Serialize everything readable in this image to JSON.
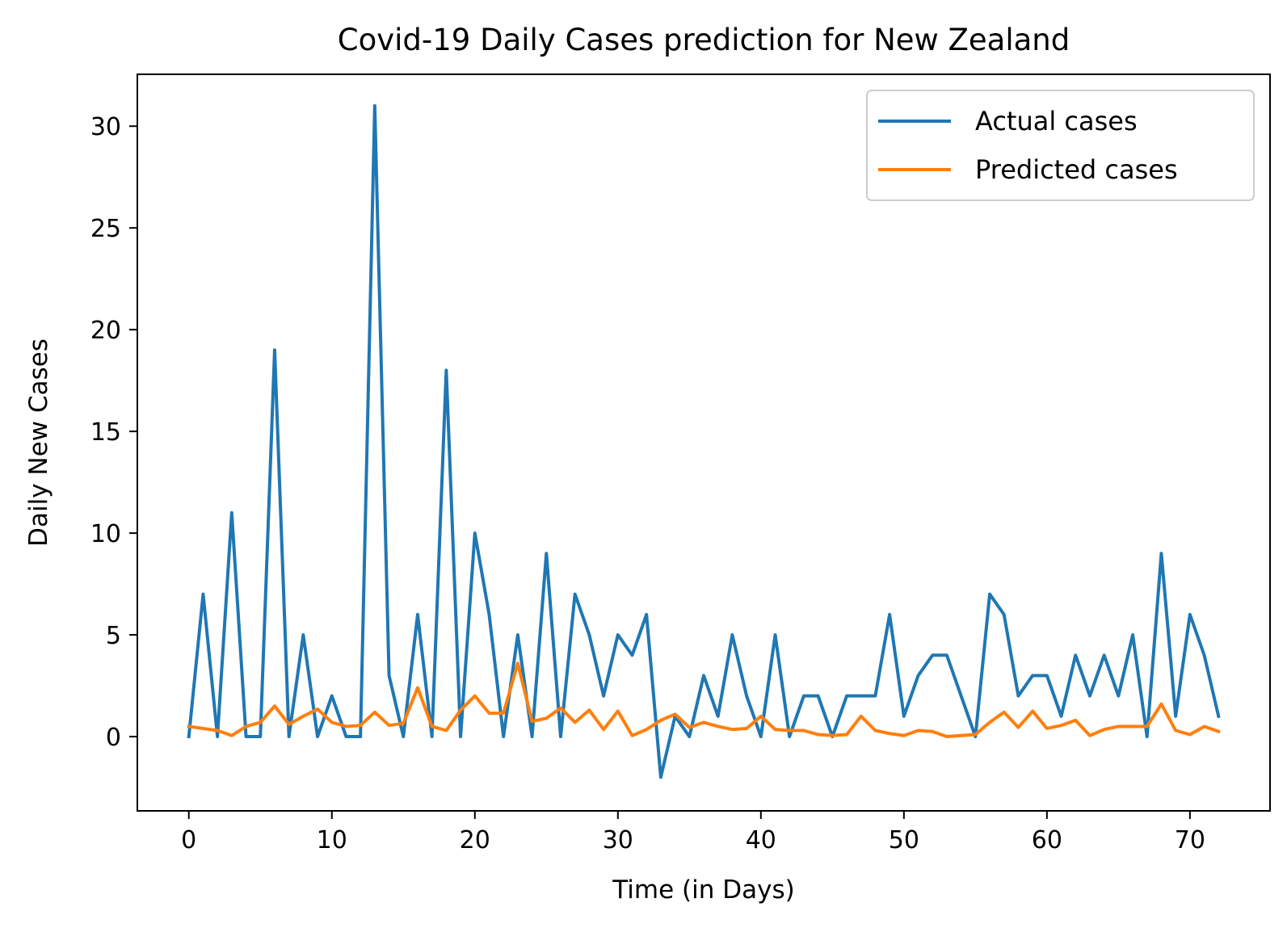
{
  "chart_data": {
    "type": "line",
    "title": "Covid-19 Daily Cases prediction for New Zealand",
    "xlabel": "Time (in Days)",
    "ylabel": "Daily New Cases",
    "xlim": [
      -3.6,
      75.6
    ],
    "ylim": [
      -3.65,
      32.55
    ],
    "x_ticks": [
      0,
      10,
      20,
      30,
      40,
      50,
      60,
      70
    ],
    "y_ticks": [
      0,
      5,
      10,
      15,
      20,
      25,
      30
    ],
    "x_tick_labels": [
      "0",
      "10",
      "20",
      "30",
      "40",
      "50",
      "60",
      "70"
    ],
    "y_tick_labels": [
      "0",
      "5",
      "10",
      "15",
      "20",
      "25",
      "30"
    ],
    "grid": false,
    "legend_position": "top-right",
    "x": [
      0,
      1,
      2,
      3,
      4,
      5,
      6,
      7,
      8,
      9,
      10,
      11,
      12,
      13,
      14,
      15,
      16,
      17,
      18,
      19,
      20,
      21,
      22,
      23,
      24,
      25,
      26,
      27,
      28,
      29,
      30,
      31,
      32,
      33,
      34,
      35,
      36,
      37,
      38,
      39,
      40,
      41,
      42,
      43,
      44,
      45,
      46,
      47,
      48,
      49,
      50,
      51,
      52,
      53,
      54,
      55,
      56,
      57,
      58,
      59,
      60,
      61,
      62,
      63,
      64,
      65,
      66,
      67,
      68,
      69,
      70,
      71,
      72
    ],
    "series": [
      {
        "name": "Actual cases",
        "color": "#1f77b4",
        "values": [
          0,
          7,
          0,
          11,
          0,
          0,
          19,
          0,
          5,
          0,
          2,
          0,
          0,
          31,
          3,
          0,
          6,
          0,
          18,
          0,
          10,
          6,
          0,
          5,
          0,
          9,
          0,
          7,
          5,
          2,
          5,
          4,
          6,
          -2,
          1,
          0,
          3,
          1,
          5,
          2,
          0,
          5,
          0,
          2,
          2,
          0,
          2,
          2,
          2,
          6,
          1,
          3,
          4,
          4,
          2,
          0,
          7,
          6,
          2,
          3,
          3,
          1,
          4,
          2,
          4,
          2,
          5,
          0,
          9,
          1,
          6,
          4,
          1
        ]
      },
      {
        "name": "Predicted cases",
        "color": "#ff7f0e",
        "values": [
          0.5,
          0.4,
          0.3,
          0.05,
          0.5,
          0.7,
          1.5,
          0.6,
          1.0,
          1.35,
          0.7,
          0.5,
          0.55,
          1.2,
          0.55,
          0.65,
          2.4,
          0.5,
          0.3,
          1.3,
          2.0,
          1.15,
          1.15,
          3.6,
          0.75,
          0.9,
          1.4,
          0.7,
          1.3,
          0.35,
          1.25,
          0.05,
          0.35,
          0.8,
          1.1,
          0.45,
          0.7,
          0.5,
          0.35,
          0.4,
          1.0,
          0.35,
          0.3,
          0.3,
          0.1,
          0.05,
          0.1,
          1.0,
          0.3,
          0.15,
          0.05,
          0.3,
          0.25,
          0.0,
          0.05,
          0.1,
          0.7,
          1.2,
          0.45,
          1.25,
          0.4,
          0.55,
          0.8,
          0.05,
          0.35,
          0.5,
          0.5,
          0.5,
          1.6,
          0.3,
          0.1,
          0.5,
          0.25
        ]
      }
    ]
  }
}
